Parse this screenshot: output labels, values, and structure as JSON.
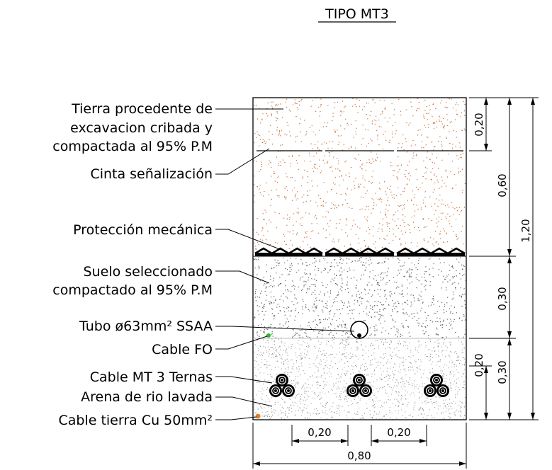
{
  "title": "TIPO MT3",
  "labels": {
    "tierra": [
      "Tierra procedente de",
      "excavacion cribada y",
      "compactada al 95% P.M"
    ],
    "cinta": "Cinta señalización",
    "proteccion": "Protección mecánica",
    "suelo": [
      "Suelo seleccionado",
      "compactado al 95% P.M"
    ],
    "tubo": "Tubo ø63mm² SSAA",
    "fo": "Cable FO",
    "mt": "Cable MT 3 Ternas",
    "arena": "Arena de rio lavada",
    "tierra_cu": "Cable tierra Cu 50mm²"
  },
  "dimensions": {
    "d_020_top": "0,20",
    "d_060": "0,60",
    "d_120": "1,20",
    "d_030_mid": "0,30",
    "d_020_bot": "0,20",
    "d_030_bot": "0,30",
    "w_020_left": "0,20",
    "w_020_right": "0,20",
    "w_080": "0,80"
  },
  "colors": {
    "soil": "#c8692f",
    "select": "#555555",
    "sand": "#8a8a8a",
    "fo_cable": "#22bb22",
    "cu_cable": "#d9822b",
    "line": "#000000"
  }
}
